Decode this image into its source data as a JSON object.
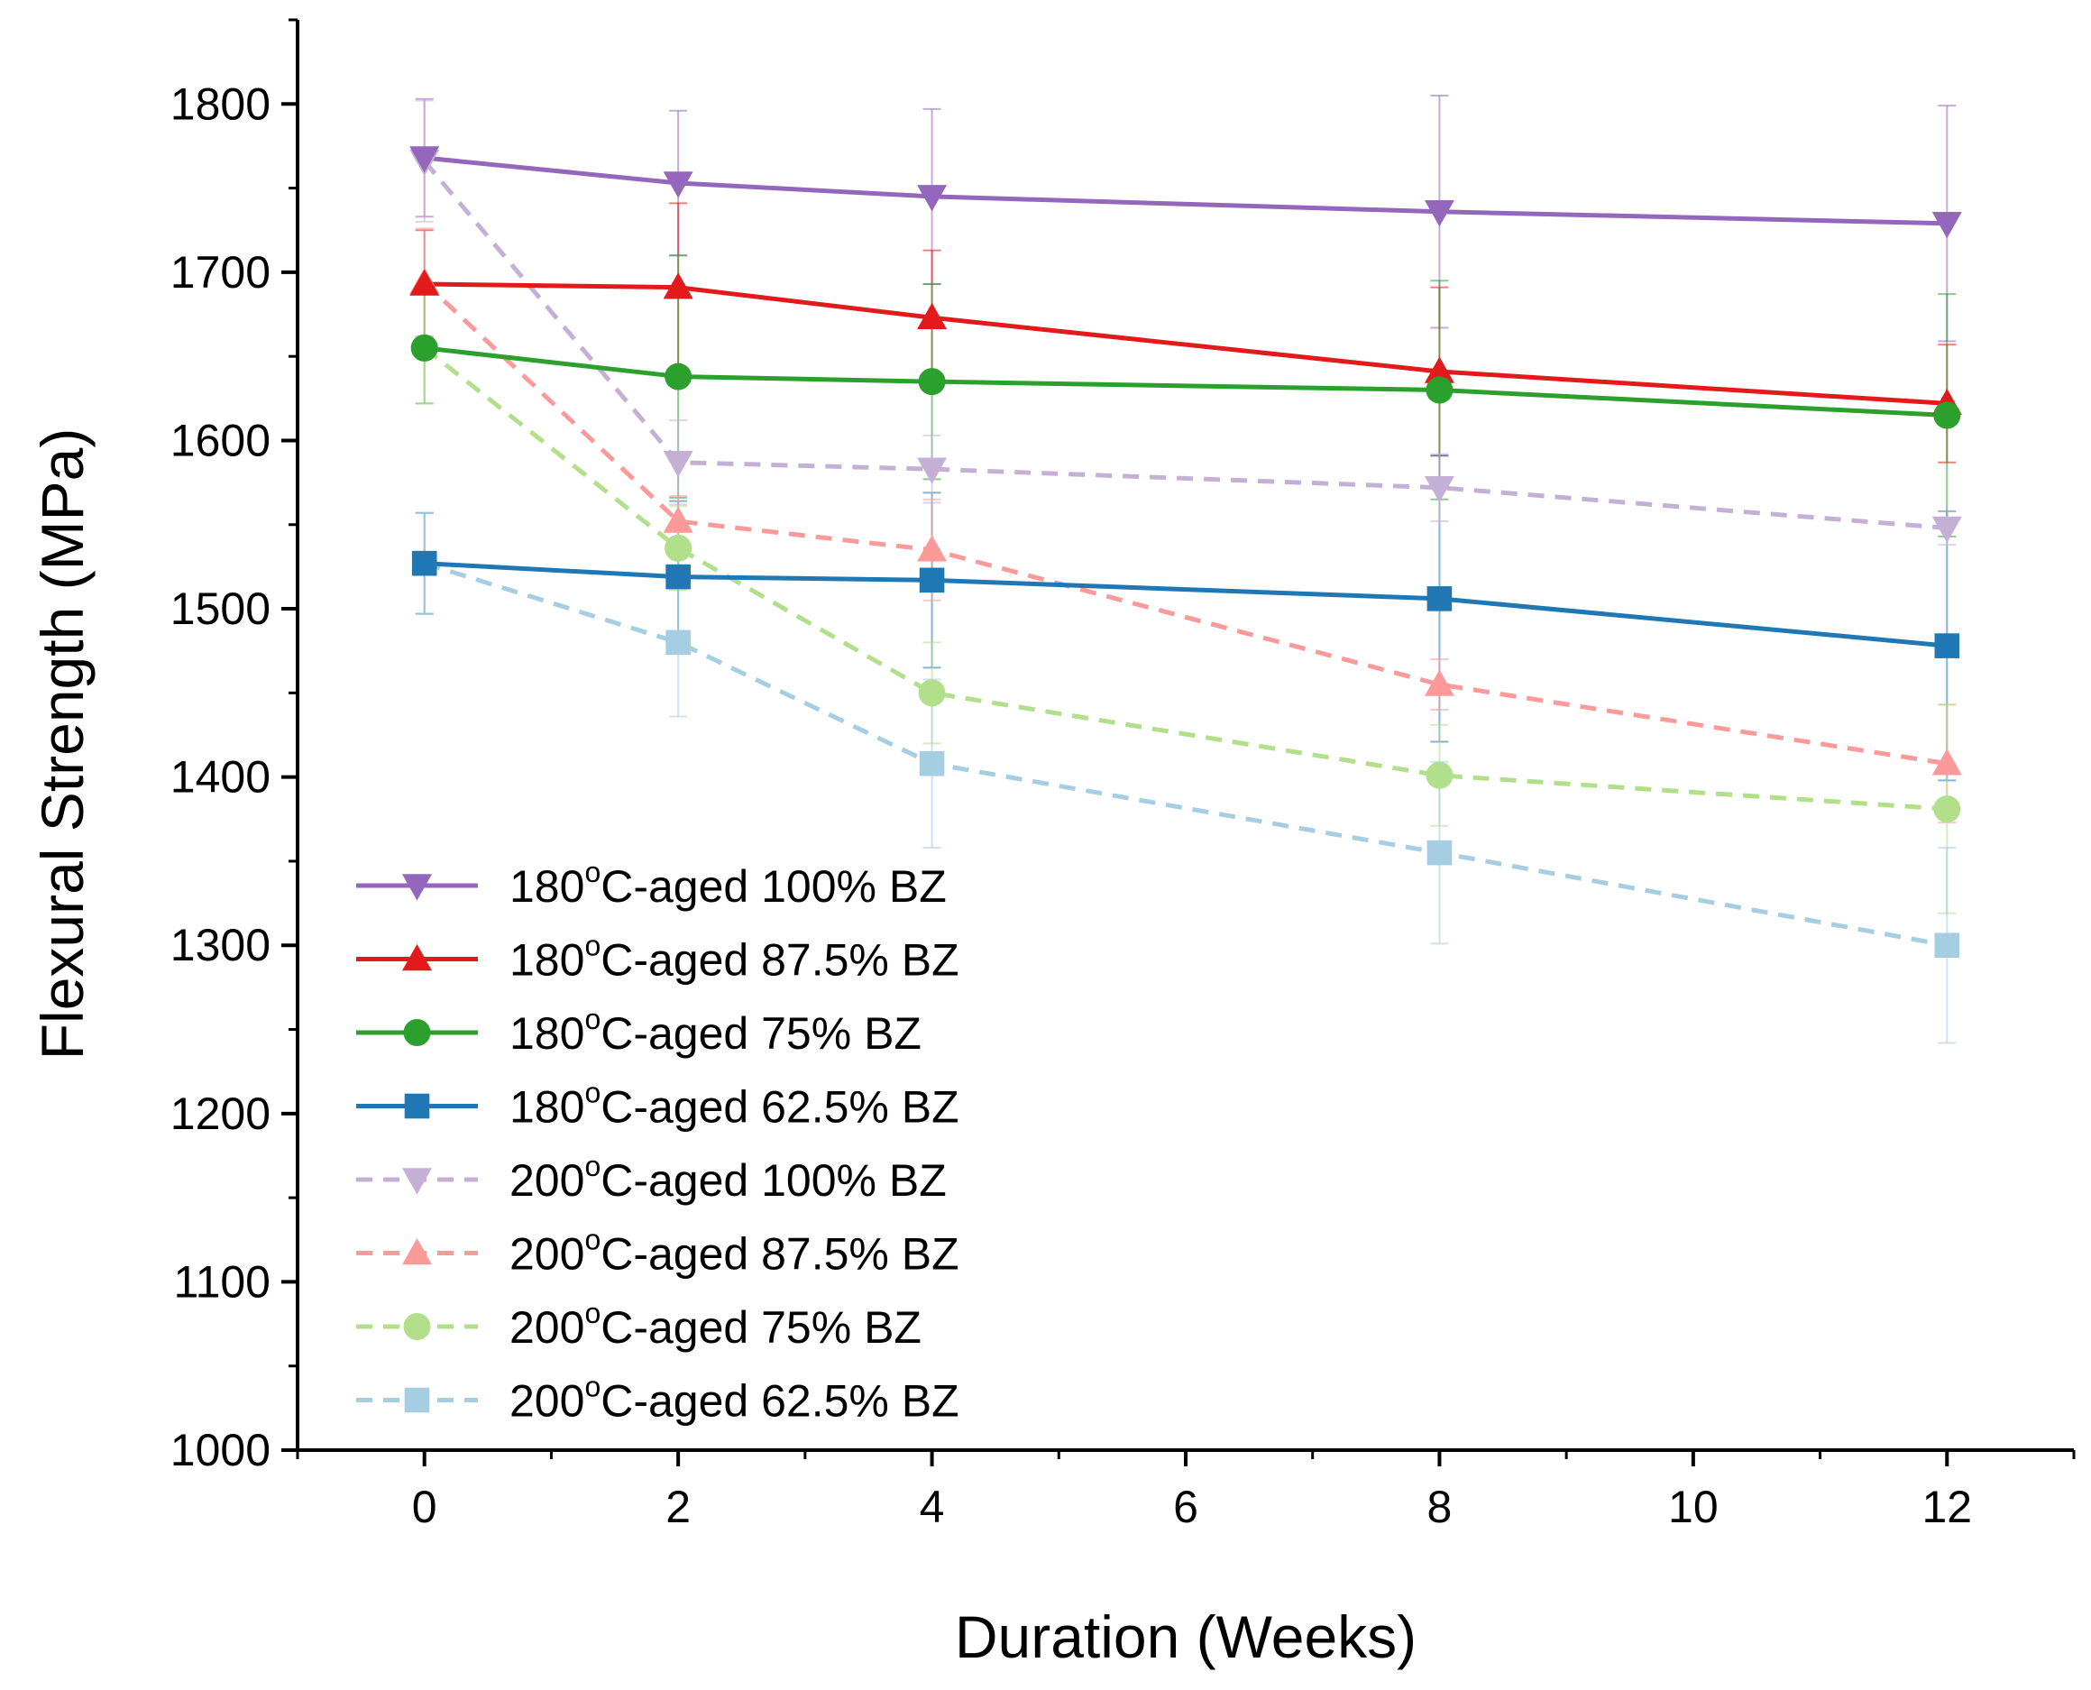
{
  "chart_data": {
    "type": "line",
    "title": "",
    "xlabel": "Duration (Weeks)",
    "ylabel": "Flexural Strength (MPa)",
    "xlim": [
      -1,
      13
    ],
    "ylim": [
      1000,
      1850
    ],
    "x_ticks": [
      0,
      2,
      4,
      6,
      8,
      10,
      12
    ],
    "x_tick_labels": [
      "0",
      "2",
      "4",
      "6",
      "8",
      "10",
      "12"
    ],
    "y_ticks": [
      1000,
      1100,
      1200,
      1300,
      1400,
      1500,
      1600,
      1700,
      1800
    ],
    "y_tick_labels": [
      "1000",
      "1100",
      "1200",
      "1300",
      "1400",
      "1500",
      "1600",
      "1700",
      "1800"
    ],
    "grid": false,
    "legend_position": "lower-left",
    "x": [
      0,
      2,
      4,
      8,
      12
    ],
    "series": [
      {
        "name": "180°C-aged 100% BZ",
        "label_prefix": "180",
        "label_sup": "o",
        "label_suffix": "C-aged 100% BZ",
        "color": "#9467bd",
        "marker": "triangle-down",
        "dashed": false,
        "opacity": 1,
        "values": [
          1768,
          1753,
          1745,
          1736,
          1729
        ],
        "errors": [
          35,
          43,
          52,
          69,
          70
        ]
      },
      {
        "name": "180°C-aged 87.5% BZ",
        "label_prefix": "180",
        "label_sup": "o",
        "label_suffix": "C-aged 87.5% BZ",
        "color": "#e31a1c",
        "marker": "triangle-up",
        "dashed": false,
        "opacity": 1,
        "values": [
          1693,
          1691,
          1673,
          1641,
          1622
        ],
        "errors": [
          32,
          50,
          40,
          50,
          35
        ]
      },
      {
        "name": "180°C-aged 75% BZ",
        "label_prefix": "180",
        "label_sup": "o",
        "label_suffix": "C-aged 75% BZ",
        "color": "#2ca02c",
        "marker": "circle",
        "dashed": false,
        "opacity": 1,
        "values": [
          1655,
          1638,
          1635,
          1630,
          1615
        ],
        "errors": [
          33,
          72,
          58,
          65,
          72
        ]
      },
      {
        "name": "180°C-aged 62.5% BZ",
        "label_prefix": "180",
        "label_sup": "o",
        "label_suffix": "C-aged 62.5% BZ",
        "color": "#1f77b4",
        "marker": "square",
        "dashed": false,
        "opacity": 1,
        "values": [
          1527,
          1519,
          1517,
          1506,
          1478
        ],
        "errors": [
          30,
          45,
          52,
          85,
          80
        ]
      },
      {
        "name": "200°C-aged 100% BZ",
        "label_prefix": "200",
        "label_sup": "o",
        "label_suffix": "C-aged 100% BZ",
        "color": "#c5b0d5",
        "marker": "triangle-down",
        "dashed": true,
        "opacity": 1,
        "values": [
          1766,
          1587,
          1583,
          1572,
          1548
        ],
        "errors": [
          36,
          25,
          20,
          20,
          10
        ]
      },
      {
        "name": "200°C-aged 87.5% BZ",
        "label_prefix": "200",
        "label_sup": "o",
        "label_suffix": "C-aged 87.5% BZ",
        "color": "#fb9a99",
        "marker": "triangle-up",
        "dashed": true,
        "opacity": 1,
        "values": [
          1694,
          1552,
          1535,
          1455,
          1408
        ],
        "errors": [
          32,
          15,
          30,
          15,
          35
        ]
      },
      {
        "name": "200°C-aged 75% BZ",
        "label_prefix": "200",
        "label_sup": "o",
        "label_suffix": "C-aged 75% BZ",
        "color": "#b2df8a",
        "marker": "circle",
        "dashed": true,
        "opacity": 1,
        "values": [
          1655,
          1536,
          1450,
          1401,
          1381
        ],
        "errors": [
          33,
          25,
          30,
          30,
          62
        ]
      },
      {
        "name": "200°C-aged 62.5% BZ",
        "label_prefix": "200",
        "label_sup": "o",
        "label_suffix": "C-aged 62.5% BZ",
        "color": "#a6cee3",
        "marker": "square",
        "dashed": true,
        "opacity": 1,
        "values": [
          1527,
          1480,
          1408,
          1355,
          1300
        ],
        "errors": [
          30,
          44,
          50,
          54,
          58
        ]
      }
    ]
  }
}
